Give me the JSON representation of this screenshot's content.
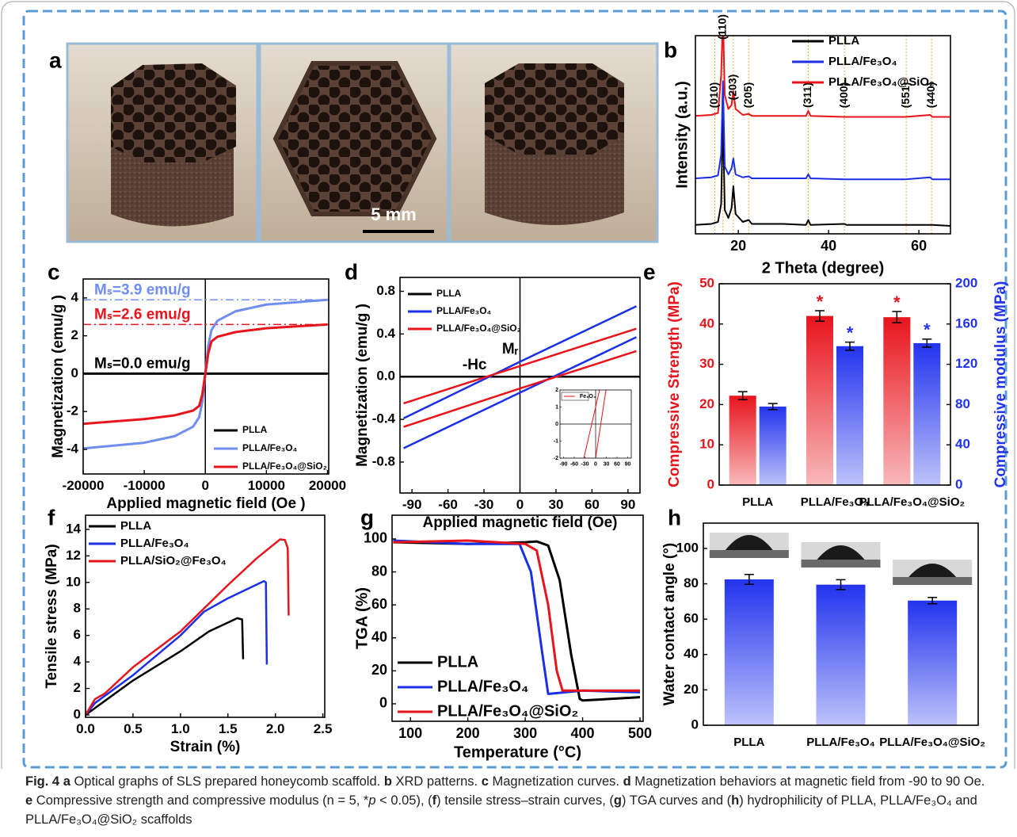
{
  "photo": {
    "panel": "a",
    "scale_bar": "5 mm"
  },
  "chart_data": [
    {
      "type": "line",
      "panel": "b",
      "xlabel": "2 Theta (degree)",
      "ylabel": "Intensity (a.u.)",
      "xlim": [
        10.5,
        67
      ],
      "ylim": [
        0,
        10
      ],
      "xticks": [
        20,
        40,
        60
      ],
      "peak_line_color": "#f0b040",
      "peaks": [
        {
          "label": "(010)",
          "x": 14.8
        },
        {
          "label": "(110)",
          "x": 16.6
        },
        {
          "label": "(203)",
          "x": 18.9
        },
        {
          "label": "(205)",
          "x": 22.3
        },
        {
          "label": "(311)",
          "x": 35.5
        },
        {
          "label": "(400)",
          "x": 43.5
        },
        {
          "label": "(551)",
          "x": 57.2
        },
        {
          "label": "(440)",
          "x": 62.8
        }
      ],
      "series": [
        {
          "name": "PLLA",
          "color": "#000000",
          "x": [
            10.5,
            14,
            15.5,
            16.2,
            16.6,
            17,
            17.8,
            18.5,
            18.9,
            19.4,
            21,
            22.3,
            23,
            30,
            35,
            35.5,
            36,
            43.5,
            44,
            57,
            62.5,
            63,
            67
          ],
          "values": [
            0.45,
            0.5,
            0.6,
            1.5,
            6,
            1.2,
            0.8,
            1.3,
            2.4,
            1.0,
            0.6,
            0.7,
            0.5,
            0.5,
            0.45,
            0.7,
            0.45,
            0.5,
            0.45,
            0.45,
            0.45,
            0.45,
            0.4
          ]
        },
        {
          "name": "PLLA/Fe₃O₄",
          "color": "#1a2fe6",
          "x": [
            10.5,
            14,
            15.5,
            16.2,
            16.6,
            17,
            17.8,
            18.5,
            18.9,
            19.4,
            21,
            22.3,
            23,
            30,
            35,
            35.5,
            36,
            43.5,
            44,
            57,
            62.5,
            63,
            67
          ],
          "values": [
            2.8,
            2.85,
            2.95,
            4,
            7.7,
            3.4,
            3.0,
            3.3,
            3.8,
            3.0,
            2.85,
            2.9,
            2.8,
            2.8,
            2.8,
            3.0,
            2.8,
            2.75,
            2.75,
            2.75,
            2.85,
            2.75,
            2.75
          ]
        },
        {
          "name": "PLLA/Fe₃O₄@SiO₂",
          "color": "#e8141c",
          "x": [
            10.5,
            14,
            15.5,
            16.2,
            16.6,
            17,
            17.8,
            18.5,
            18.9,
            19.4,
            21,
            22.3,
            23,
            30,
            35,
            35.5,
            36,
            43.5,
            44,
            57,
            62.5,
            63,
            67
          ],
          "values": [
            5.95,
            6.0,
            6.1,
            8,
            11,
            7.0,
            6.3,
            6.5,
            7.2,
            6.3,
            6.0,
            6.05,
            5.95,
            5.95,
            5.95,
            6.2,
            5.95,
            5.9,
            5.9,
            5.9,
            6.0,
            5.9,
            5.9
          ]
        }
      ]
    },
    {
      "type": "line",
      "panel": "c",
      "xlabel": "Applied magnetic field (Oe )",
      "ylabel": "Magnetization (emu/g )",
      "xlim": [
        -20000,
        20200
      ],
      "ylim": [
        -5.3,
        5
      ],
      "xticks": [
        -20000,
        -10000,
        0,
        10000,
        20000
      ],
      "yticks": [
        -4,
        -2,
        0,
        2,
        4
      ],
      "crosshair": true,
      "annotations": [
        {
          "text": "Mₛ=3.9 emu/g",
          "value": 3.9,
          "color": "#6f8ef0"
        },
        {
          "text": "Mₛ=2.6 emu/g",
          "value": 2.6,
          "color": "#e8141c"
        },
        {
          "text": "Mₛ=0.0 emu/g",
          "value": 0,
          "color": "#000000"
        }
      ],
      "series": [
        {
          "name": "PLLA",
          "color": "#000000",
          "x": [
            -20000,
            -10000,
            -5000,
            -2000,
            -1000,
            -500,
            0,
            500,
            1000,
            2000,
            5000,
            10000,
            20000
          ],
          "values": [
            0,
            0,
            0,
            0,
            0,
            0,
            0,
            0,
            0,
            0,
            0,
            0,
            0
          ]
        },
        {
          "name": "PLLA/Fe₃O₄",
          "color": "#6f8ef0",
          "x": [
            -20000,
            -10000,
            -5000,
            -2000,
            -1000,
            -500,
            0,
            500,
            1000,
            2000,
            5000,
            10000,
            20000
          ],
          "values": [
            -3.95,
            -3.65,
            -3.3,
            -2.8,
            -2.3,
            -1.5,
            0,
            1.5,
            2.3,
            2.8,
            3.3,
            3.65,
            3.9
          ]
        },
        {
          "name": "PLLA/Fe₃O₄@SiO₂",
          "color": "#e8141c",
          "x": [
            -20000,
            -10000,
            -5000,
            -2000,
            -1000,
            -500,
            0,
            500,
            1000,
            2000,
            5000,
            10000,
            20000
          ],
          "values": [
            -2.65,
            -2.4,
            -2.2,
            -1.95,
            -1.7,
            -1.1,
            0,
            1.1,
            1.7,
            1.95,
            2.2,
            2.4,
            2.6
          ]
        }
      ]
    },
    {
      "type": "line",
      "panel": "d",
      "xlabel": "Applied magnetic field (Oe)",
      "ylabel": "Magnetization (emu/g )",
      "xlim": [
        -100,
        100
      ],
      "ylim": [
        -1.09,
        0.93
      ],
      "xticks": [
        -90,
        -60,
        -30,
        0,
        30,
        60,
        90
      ],
      "yticks": [
        -0.8,
        -0.4,
        {
          "value": 0,
          "label": "0.0"
        },
        0.4,
        0.8
      ],
      "crosshair": true,
      "annotations": [
        {
          "text": "Mᵣ"
        },
        {
          "text": "-Hc"
        }
      ],
      "series": [
        {
          "name": "PLLA",
          "color": "#000000",
          "x": [
            -100,
            100
          ],
          "values": [
            0,
            0
          ]
        },
        {
          "name": "PLLA/Fe₃O₄",
          "color": "#1a2fe6",
          "x": [
            -97,
            0,
            97,
            97,
            97,
            0,
            -97
          ],
          "values": [
            -0.67,
            -0.15,
            0.37,
            null,
            0.66,
            0.14,
            -0.39
          ]
        },
        {
          "name": "PLLA/Fe₃O₄@SiO₂",
          "color": "#e8141c",
          "x": [
            -97,
            0,
            97,
            97,
            97,
            0,
            -97
          ],
          "values": [
            -0.47,
            -0.11,
            0.24,
            null,
            0.45,
            0.1,
            -0.25
          ]
        }
      ]
    },
    {
      "type": "line",
      "xlim": [
        -100,
        100
      ],
      "ylim": [
        -2,
        2
      ],
      "xticks": [
        -90,
        -60,
        -30,
        0,
        30,
        60,
        90
      ],
      "yticks": [
        -2,
        -1,
        0,
        1,
        2
      ],
      "crosshair": true,
      "series": [
        {
          "name": "Fe₃O₄",
          "color": "#e8141c",
          "x": [
            -33,
            11,
            11,
            0,
            29
          ],
          "values": [
            -2,
            2,
            null,
            -2,
            2
          ]
        }
      ]
    },
    {
      "type": "bar",
      "panel": "e",
      "ylabel": "Compressive Strength (MPa)",
      "y2label": "Compressive modulus (MPa)",
      "categories": [
        "PLLA",
        "PLLA/Fe₃O₄",
        "PLLA/Fe₃O₄@SiO₂"
      ],
      "ylim": [
        0,
        50
      ],
      "yticks": [
        0,
        10,
        20,
        30,
        40,
        50
      ],
      "y2lim": [
        0,
        200
      ],
      "y2ticks": [
        0,
        40,
        80,
        120,
        160,
        200
      ],
      "series": [
        {
          "color": "#e8141c",
          "values": [
            22.2,
            42,
            41.7
          ],
          "errors": [
            1,
            1.3,
            1.4
          ],
          "significance": [
            null,
            "*",
            "*"
          ]
        },
        {
          "color": "#2233ee",
          "axis": "y2",
          "values": [
            78,
            138,
            141
          ],
          "errors": [
            3,
            4,
            4
          ],
          "significance": [
            null,
            "*",
            "*"
          ]
        }
      ]
    },
    {
      "type": "line",
      "panel": "f",
      "xlabel": "Strain (%)",
      "ylabel": "Tensile stress (MPa)",
      "xlim": [
        0,
        2.52
      ],
      "ylim": [
        -0.18,
        15.07
      ],
      "xticks": [
        {
          "value": 0,
          "label": "0.0"
        },
        0.5,
        {
          "value": 1,
          "label": "1.0"
        },
        1.5,
        {
          "value": 2,
          "label": "2.0"
        },
        2.5
      ],
      "yticks": [
        0,
        2,
        4,
        6,
        8,
        10,
        12,
        14
      ],
      "series": [
        {
          "name": "PLLA",
          "color": "#000000",
          "x": [
            0,
            0.5,
            1,
            1.3,
            1.6,
            1.65,
            1.66
          ],
          "values": [
            0,
            2.6,
            4.8,
            6.3,
            7.3,
            7.2,
            4.2
          ]
        },
        {
          "name": "PLLA/Fe₃O₄",
          "color": "#1a2fe6",
          "x": [
            0,
            0.1,
            0.5,
            1,
            1.25,
            1.5,
            1.88,
            1.9,
            1.91
          ],
          "values": [
            0,
            0.9,
            3,
            6,
            7.8,
            8.8,
            10.1,
            10,
            3.8
          ]
        },
        {
          "name": "PLLA/SiO₂@Fe₃O₄",
          "color": "#e8141c",
          "x": [
            0,
            0.1,
            0.2,
            0.5,
            1,
            1.5,
            1.8,
            2.05,
            2.1,
            2.13,
            2.14
          ],
          "values": [
            0,
            1.2,
            1.6,
            3.6,
            6.3,
            9.8,
            11.8,
            13.25,
            13.2,
            12.6,
            7.5
          ]
        }
      ]
    },
    {
      "type": "line",
      "panel": "g",
      "xlabel": "Temperature (°C)",
      "ylabel": "TGA (%)",
      "xlim": [
        68,
        505.5
      ],
      "ylim": [
        -10.6,
        114.4
      ],
      "xticks": [
        100,
        200,
        300,
        400,
        500
      ],
      "yticks": [
        0,
        20,
        40,
        60,
        80,
        100
      ],
      "series": [
        {
          "name": "PLLA",
          "color": "#000000",
          "x": [
            70,
            200,
            300,
            320,
            340,
            360,
            380,
            395,
            400,
            500
          ],
          "values": [
            98,
            97,
            98,
            98.5,
            96,
            75,
            30,
            3,
            2,
            4
          ]
        },
        {
          "name": "PLLA/Fe₃O₄",
          "color": "#1a2fe6",
          "x": [
            70,
            200,
            290,
            310,
            330,
            340,
            400,
            500
          ],
          "values": [
            99,
            97,
            97,
            80,
            30,
            6,
            8,
            7
          ]
        },
        {
          "name": "PLLA/Fe₃O₄@SiO₂",
          "color": "#e8141c",
          "x": [
            70,
            200,
            300,
            320,
            340,
            355,
            365,
            500
          ],
          "values": [
            98,
            99,
            97,
            93,
            60,
            20,
            8,
            8
          ]
        }
      ]
    },
    {
      "type": "bar",
      "panel": "h",
      "ylabel": "Water contact angle (°)",
      "categories": [
        "PLLA",
        "PLLA/Fe₃O₄",
        "PLLA/Fe₃O₄@SiO₂"
      ],
      "ylim": [
        0,
        114.3
      ],
      "yticks": [
        0,
        20,
        40,
        60,
        80,
        100
      ],
      "series": [
        {
          "color": "#2233ee",
          "values": [
            82.5,
            79.5,
            70.5
          ],
          "errors": [
            2.8,
            2.8,
            1.8
          ]
        }
      ]
    }
  ],
  "caption": [
    {
      "text": "Fig. 4",
      "style": "bold"
    },
    {
      "text": "a",
      "style": "bold"
    },
    {
      "text": "Optical graphs of SLS prepared honeycomb scaffold."
    },
    {
      "text": "b",
      "style": "bold"
    },
    {
      "text": "XRD patterns."
    },
    {
      "text": "c",
      "style": "bold"
    },
    {
      "text": "Magnetization curves."
    },
    {
      "text": "d",
      "style": "bold"
    },
    {
      "text": "Magnetization behaviors at magnetic field from -90 to 90 Oe."
    },
    {
      "text": "e",
      "style": "bold"
    },
    {
      "text": "Compressive strength and compressive modulus (n = 5, *"
    },
    {
      "text": "p",
      "style": "italic"
    },
    {
      "text": "< 0.05), ("
    },
    {
      "text": "f",
      "style": "bold"
    },
    {
      "text": ") tensile stress–strain curves, ("
    },
    {
      "text": "g",
      "style": "bold"
    },
    {
      "text": ") TGA curves and ("
    },
    {
      "text": "h",
      "style": "bold"
    },
    {
      "text": ") hydrophilicity of PLLA, PLLA/Fe₃O₄ and PLLA/Fe₃O₄@SiO₂ scaffolds"
    }
  ]
}
